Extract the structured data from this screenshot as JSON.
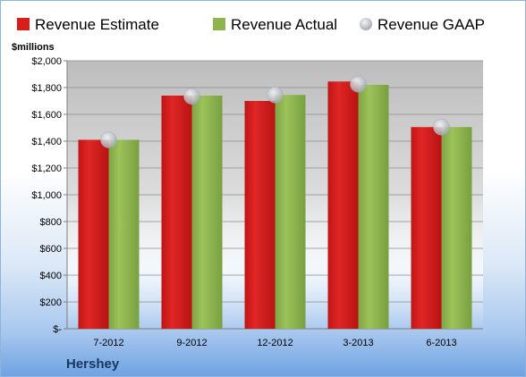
{
  "chart_data": {
    "type": "bar",
    "unit_label": "$millions",
    "categories": [
      "7-2012",
      "9-2012",
      "12-2012",
      "3-2013",
      "6-2013"
    ],
    "series": [
      {
        "name": "Revenue Estimate",
        "values": [
          1410,
          1740,
          1700,
          1845,
          1505
        ],
        "color": "#d81d1d"
      },
      {
        "name": "Revenue Actual",
        "values": [
          1410,
          1740,
          1745,
          1820,
          1505
        ],
        "color": "#8db44e"
      },
      {
        "name": "Revenue GAAP",
        "values": [
          1410,
          1735,
          1745,
          1825,
          1505
        ],
        "color": "#c0c4cc",
        "marker": "circle"
      }
    ],
    "y_ticks": [
      "$-",
      "$200",
      "$400",
      "$600",
      "$800",
      "$1,000",
      "$1,200",
      "$1,400",
      "$1,600",
      "$1,800",
      "$2,000"
    ],
    "ylim": [
      0,
      2000
    ],
    "grid": true,
    "legend_position": "top"
  },
  "footer": {
    "company": "Hershey"
  }
}
